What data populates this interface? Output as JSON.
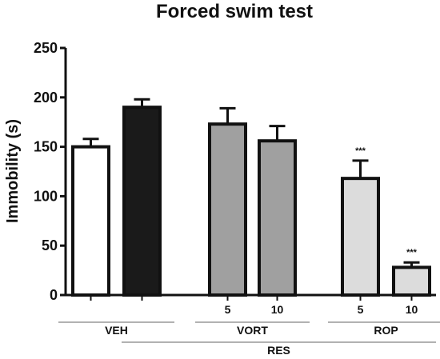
{
  "chart_data": {
    "type": "bar",
    "title": "Forced swim test",
    "ylabel": "Immobility (s)",
    "xlabel": "",
    "ylim": [
      0,
      250
    ],
    "yticks": [
      0,
      50,
      100,
      150,
      200,
      250
    ],
    "grid": false,
    "bars": [
      {
        "dose": "",
        "value": 150,
        "error": 8,
        "color": "#ffffff",
        "significance": ""
      },
      {
        "dose": "",
        "value": 190,
        "error": 8,
        "color": "#1a1a1a",
        "significance": ""
      },
      {
        "dose": "5",
        "value": 173,
        "error": 16,
        "color": "#a0a0a0",
        "significance": ""
      },
      {
        "dose": "10",
        "value": 156,
        "error": 15,
        "color": "#a0a0a0",
        "significance": ""
      },
      {
        "dose": "5",
        "value": 118,
        "error": 18,
        "color": "#dcdcdc",
        "significance": "***"
      },
      {
        "dose": "10",
        "value": 28,
        "error": 5,
        "color": "#dcdcdc",
        "significance": "***"
      }
    ],
    "groups": [
      {
        "label": "VEH",
        "bars": [
          0,
          1
        ]
      },
      {
        "label": "VORT",
        "bars": [
          2,
          3
        ]
      },
      {
        "label": "ROP",
        "bars": [
          4,
          5
        ]
      }
    ],
    "supergroup": {
      "label": "RES",
      "bars": [
        1,
        5
      ]
    }
  }
}
